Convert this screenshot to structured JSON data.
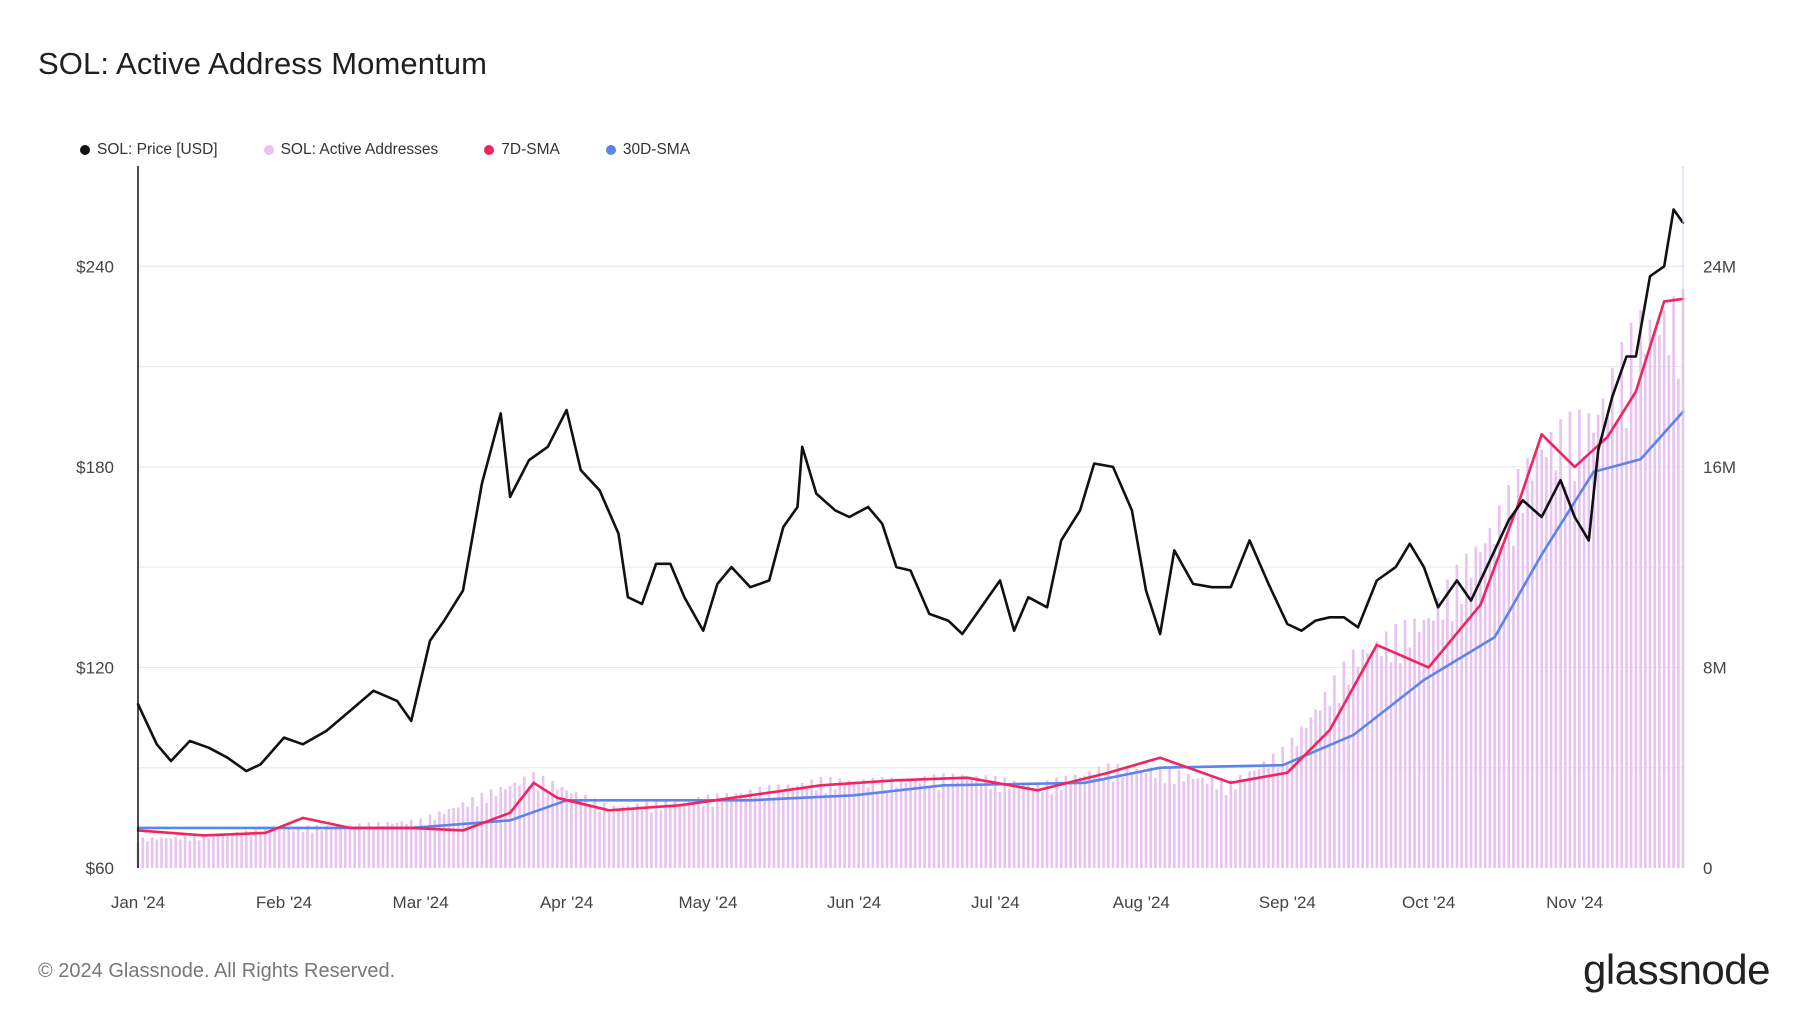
{
  "title": "SOL: Active Address Momentum",
  "footer": {
    "copyright": "© 2024 Glassnode. All Rights Reserved.",
    "brand": "glassnode"
  },
  "legend": [
    {
      "label": "SOL: Price [USD]",
      "color": "#111111"
    },
    {
      "label": "SOL: Active Addresses",
      "color": "#e8c2f0"
    },
    {
      "label": "7D-SMA",
      "color": "#f2245c"
    },
    {
      "label": "30D-SMA",
      "color": "#5b84ec"
    }
  ],
  "chart_data": {
    "type": "line",
    "grid": true,
    "legend_position": "top-left",
    "x_tick_labels": [
      "Jan '24",
      "Feb '24",
      "Mar '24",
      "Apr '24",
      "May '24",
      "Jun '24",
      "Jul '24",
      "Aug '24",
      "Sep '24",
      "Oct '24",
      "Nov '24"
    ],
    "x_start": "2024-01-01",
    "x_end": "2024-11-24",
    "left_axis": {
      "ylim": [
        60,
        270
      ],
      "ticks": [
        60,
        120,
        180,
        240
      ],
      "tick_labels": [
        "$60",
        "$120",
        "$180",
        "$240"
      ]
    },
    "right_axis": {
      "ylim": [
        0,
        28
      ],
      "ticks": [
        0,
        8,
        16,
        24
      ],
      "tick_labels": [
        "0",
        "8M",
        "16M",
        "24M"
      ],
      "unit": "M"
    },
    "series": [
      {
        "name": "SOL: Price [USD]",
        "axis": "left",
        "color": "#111111",
        "kind": "line",
        "points": [
          [
            "2024-01-01",
            109
          ],
          [
            "2024-01-05",
            97
          ],
          [
            "2024-01-08",
            92
          ],
          [
            "2024-01-12",
            98
          ],
          [
            "2024-01-16",
            96
          ],
          [
            "2024-01-20",
            93
          ],
          [
            "2024-01-24",
            89
          ],
          [
            "2024-01-27",
            91
          ],
          [
            "2024-02-01",
            99
          ],
          [
            "2024-02-05",
            97
          ],
          [
            "2024-02-10",
            101
          ],
          [
            "2024-02-15",
            107
          ],
          [
            "2024-02-20",
            113
          ],
          [
            "2024-02-25",
            110
          ],
          [
            "2024-02-28",
            104
          ],
          [
            "2024-03-03",
            128
          ],
          [
            "2024-03-06",
            134
          ],
          [
            "2024-03-10",
            143
          ],
          [
            "2024-03-14",
            175
          ],
          [
            "2024-03-18",
            196
          ],
          [
            "2024-03-20",
            171
          ],
          [
            "2024-03-24",
            182
          ],
          [
            "2024-03-28",
            186
          ],
          [
            "2024-04-01",
            197
          ],
          [
            "2024-04-04",
            179
          ],
          [
            "2024-04-08",
            173
          ],
          [
            "2024-04-12",
            160
          ],
          [
            "2024-04-14",
            141
          ],
          [
            "2024-04-17",
            139
          ],
          [
            "2024-04-20",
            151
          ],
          [
            "2024-04-23",
            151
          ],
          [
            "2024-04-26",
            141
          ],
          [
            "2024-04-30",
            131
          ],
          [
            "2024-05-03",
            145
          ],
          [
            "2024-05-06",
            150
          ],
          [
            "2024-05-10",
            144
          ],
          [
            "2024-05-14",
            146
          ],
          [
            "2024-05-17",
            162
          ],
          [
            "2024-05-20",
            168
          ],
          [
            "2024-05-21",
            186
          ],
          [
            "2024-05-24",
            172
          ],
          [
            "2024-05-28",
            167
          ],
          [
            "2024-05-31",
            165
          ],
          [
            "2024-06-04",
            168
          ],
          [
            "2024-06-07",
            163
          ],
          [
            "2024-06-10",
            150
          ],
          [
            "2024-06-13",
            149
          ],
          [
            "2024-06-17",
            136
          ],
          [
            "2024-06-21",
            134
          ],
          [
            "2024-06-24",
            130
          ],
          [
            "2024-06-28",
            138
          ],
          [
            "2024-07-02",
            146
          ],
          [
            "2024-07-05",
            131
          ],
          [
            "2024-07-08",
            141
          ],
          [
            "2024-07-12",
            138
          ],
          [
            "2024-07-15",
            158
          ],
          [
            "2024-07-19",
            167
          ],
          [
            "2024-07-22",
            181
          ],
          [
            "2024-07-26",
            180
          ],
          [
            "2024-07-30",
            167
          ],
          [
            "2024-08-02",
            143
          ],
          [
            "2024-08-05",
            130
          ],
          [
            "2024-08-08",
            155
          ],
          [
            "2024-08-12",
            145
          ],
          [
            "2024-08-16",
            144
          ],
          [
            "2024-08-20",
            144
          ],
          [
            "2024-08-24",
            158
          ],
          [
            "2024-08-28",
            145
          ],
          [
            "2024-09-01",
            133
          ],
          [
            "2024-09-04",
            131
          ],
          [
            "2024-09-07",
            134
          ],
          [
            "2024-09-10",
            135
          ],
          [
            "2024-09-13",
            135
          ],
          [
            "2024-09-16",
            132
          ],
          [
            "2024-09-20",
            146
          ],
          [
            "2024-09-24",
            150
          ],
          [
            "2024-09-27",
            157
          ],
          [
            "2024-09-30",
            150
          ],
          [
            "2024-10-03",
            138
          ],
          [
            "2024-10-07",
            146
          ],
          [
            "2024-10-10",
            140
          ],
          [
            "2024-10-14",
            152
          ],
          [
            "2024-10-18",
            164
          ],
          [
            "2024-10-21",
            170
          ],
          [
            "2024-10-25",
            165
          ],
          [
            "2024-10-29",
            176
          ],
          [
            "2024-11-01",
            165
          ],
          [
            "2024-11-04",
            158
          ],
          [
            "2024-11-06",
            185
          ],
          [
            "2024-11-09",
            201
          ],
          [
            "2024-11-12",
            213
          ],
          [
            "2024-11-14",
            213
          ],
          [
            "2024-11-17",
            237
          ],
          [
            "2024-11-20",
            240
          ],
          [
            "2024-11-22",
            257
          ],
          [
            "2024-11-24",
            253
          ]
        ]
      },
      {
        "name": "SOL: Active Addresses",
        "axis": "right",
        "color": "#e8c2f0",
        "kind": "bar",
        "points": [
          [
            "2024-01-01",
            1.1
          ],
          [
            "2024-01-15",
            1.2
          ],
          [
            "2024-02-01",
            1.5
          ],
          [
            "2024-02-15",
            1.6
          ],
          [
            "2024-03-01",
            1.8
          ],
          [
            "2024-03-15",
            2.8
          ],
          [
            "2024-03-25",
            3.5
          ],
          [
            "2024-04-10",
            2.3
          ],
          [
            "2024-04-25",
            2.5
          ],
          [
            "2024-05-10",
            2.9
          ],
          [
            "2024-05-25",
            3.3
          ],
          [
            "2024-06-10",
            3.3
          ],
          [
            "2024-06-25",
            3.5
          ],
          [
            "2024-07-10",
            3.1
          ],
          [
            "2024-07-25",
            3.8
          ],
          [
            "2024-08-05",
            3.7
          ],
          [
            "2024-08-20",
            3.2
          ],
          [
            "2024-09-01",
            4.5
          ],
          [
            "2024-09-15",
            8.0
          ],
          [
            "2024-10-01",
            9.5
          ],
          [
            "2024-10-15",
            13.0
          ],
          [
            "2024-10-25",
            16.0
          ],
          [
            "2024-11-05",
            17.0
          ],
          [
            "2024-11-15",
            20.5
          ],
          [
            "2024-11-24",
            21.0
          ]
        ]
      },
      {
        "name": "7D-SMA",
        "axis": "right",
        "color": "#f2245c",
        "kind": "line",
        "points": [
          [
            "2024-01-01",
            1.5
          ],
          [
            "2024-01-15",
            1.3
          ],
          [
            "2024-01-28",
            1.4
          ],
          [
            "2024-02-05",
            2.0
          ],
          [
            "2024-02-15",
            1.6
          ],
          [
            "2024-02-28",
            1.6
          ],
          [
            "2024-03-10",
            1.5
          ],
          [
            "2024-03-20",
            2.2
          ],
          [
            "2024-03-25",
            3.4
          ],
          [
            "2024-03-30",
            2.8
          ],
          [
            "2024-04-10",
            2.3
          ],
          [
            "2024-04-25",
            2.5
          ],
          [
            "2024-05-10",
            2.9
          ],
          [
            "2024-05-25",
            3.3
          ],
          [
            "2024-06-10",
            3.5
          ],
          [
            "2024-06-25",
            3.6
          ],
          [
            "2024-07-10",
            3.1
          ],
          [
            "2024-07-25",
            3.8
          ],
          [
            "2024-08-05",
            4.4
          ],
          [
            "2024-08-20",
            3.4
          ],
          [
            "2024-09-01",
            3.8
          ],
          [
            "2024-09-10",
            5.5
          ],
          [
            "2024-09-20",
            8.9
          ],
          [
            "2024-10-01",
            8.0
          ],
          [
            "2024-10-12",
            10.5
          ],
          [
            "2024-10-20",
            14.5
          ],
          [
            "2024-10-25",
            17.3
          ],
          [
            "2024-11-01",
            16.0
          ],
          [
            "2024-11-08",
            17.2
          ],
          [
            "2024-11-14",
            19.0
          ],
          [
            "2024-11-20",
            22.6
          ],
          [
            "2024-11-24",
            22.7
          ]
        ]
      },
      {
        "name": "30D-SMA",
        "axis": "right",
        "color": "#5b84ec",
        "kind": "line",
        "points": [
          [
            "2024-01-01",
            1.6
          ],
          [
            "2024-01-31",
            1.6
          ],
          [
            "2024-02-28",
            1.6
          ],
          [
            "2024-03-20",
            1.9
          ],
          [
            "2024-04-01",
            2.7
          ],
          [
            "2024-04-20",
            2.7
          ],
          [
            "2024-05-10",
            2.7
          ],
          [
            "2024-06-01",
            2.9
          ],
          [
            "2024-06-20",
            3.3
          ],
          [
            "2024-07-20",
            3.4
          ],
          [
            "2024-08-05",
            4.0
          ],
          [
            "2024-08-31",
            4.1
          ],
          [
            "2024-09-15",
            5.3
          ],
          [
            "2024-09-30",
            7.5
          ],
          [
            "2024-10-15",
            9.2
          ],
          [
            "2024-10-25",
            12.5
          ],
          [
            "2024-11-05",
            15.8
          ],
          [
            "2024-11-15",
            16.3
          ],
          [
            "2024-11-24",
            18.2
          ]
        ]
      }
    ]
  }
}
